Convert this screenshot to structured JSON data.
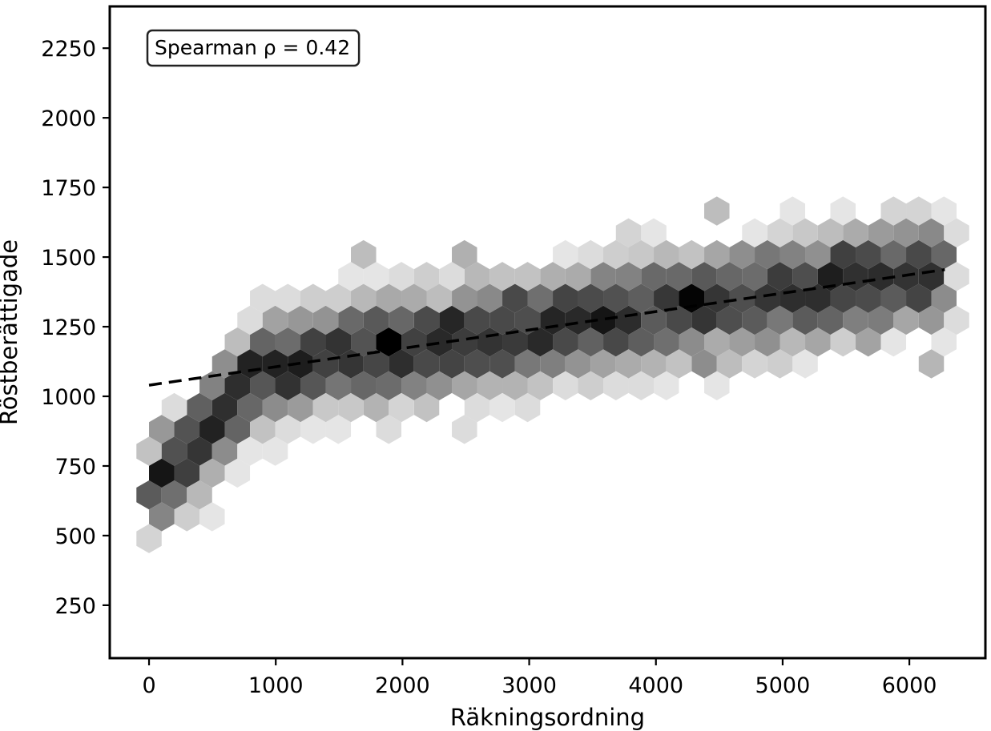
{
  "chart_data": {
    "type": "hexbin",
    "xlabel": "Räkningsordning",
    "ylabel": "Röstberättigade",
    "xlim": [
      -310,
      6600
    ],
    "ylim": [
      60,
      2400
    ],
    "x_ticks": [
      0,
      1000,
      2000,
      3000,
      4000,
      5000,
      6000
    ],
    "y_ticks": [
      250,
      500,
      750,
      1000,
      1250,
      1500,
      1750,
      2000,
      2250
    ],
    "grid": false,
    "colormap": "Greys",
    "annotation": "Spearman ρ = 0.42",
    "annotation_position": "top-left",
    "trend_line": {
      "style": "dashed",
      "color": "#000000",
      "x": [
        0,
        6280
      ],
      "y": [
        1040,
        1455
      ]
    },
    "hexbins": [
      {
        "x": 620,
        "y": 990,
        "count": 9
      },
      {
        "x": 1960,
        "y": 1210,
        "count": 10
      },
      {
        "x": 1000,
        "y": 1040,
        "count": 8
      },
      {
        "x": 2580,
        "y": 1480,
        "count": 7
      },
      {
        "x": 80,
        "y": 860,
        "count": 7
      },
      {
        "x": 1820,
        "y": 1300,
        "count": 7
      },
      {
        "x": 2160,
        "y": 1300,
        "count": 8
      },
      {
        "x": 2750,
        "y": 1080,
        "count": 7
      },
      {
        "x": 4330,
        "y": 1080,
        "count": 7
      },
      {
        "x": 5660,
        "y": 1180,
        "count": 7
      },
      {
        "x": 6150,
        "y": 1120,
        "count": 6
      },
      {
        "x": 4800,
        "y": 1470,
        "count": 6
      },
      {
        "x": 5400,
        "y": 1510,
        "count": 6
      },
      {
        "x": 3700,
        "y": 1220,
        "count": 6
      },
      {
        "x": 3500,
        "y": 1430,
        "count": 6
      },
      {
        "x": 1270,
        "y": 1120,
        "count": 6
      },
      {
        "x": 560,
        "y": 1120,
        "count": 6
      },
      {
        "x": 4700,
        "y": 1540,
        "count": 6
      },
      {
        "x": 4500,
        "y": 1690,
        "count": 5
      },
      {
        "x": 1700,
        "y": 1470,
        "count": 5
      },
      {
        "x": 6180,
        "y": 1590,
        "count": 5
      },
      {
        "x": 1850,
        "y": 1350,
        "count": 6
      },
      {
        "x": 2420,
        "y": 1300,
        "count": 6
      },
      {
        "x": 3100,
        "y": 1260,
        "count": 5
      },
      {
        "x": 4900,
        "y": 1220,
        "count": 5
      },
      {
        "x": 5300,
        "y": 1340,
        "count": 5
      },
      {
        "x": 330,
        "y": 980,
        "count": 6
      },
      {
        "x": 760,
        "y": 1080,
        "count": 6
      },
      {
        "x": 1500,
        "y": 1250,
        "count": 5
      },
      {
        "x": 2900,
        "y": 1380,
        "count": 5
      },
      {
        "x": 4100,
        "y": 1420,
        "count": 5
      },
      {
        "x": 5800,
        "y": 1300,
        "count": 5
      }
    ]
  }
}
